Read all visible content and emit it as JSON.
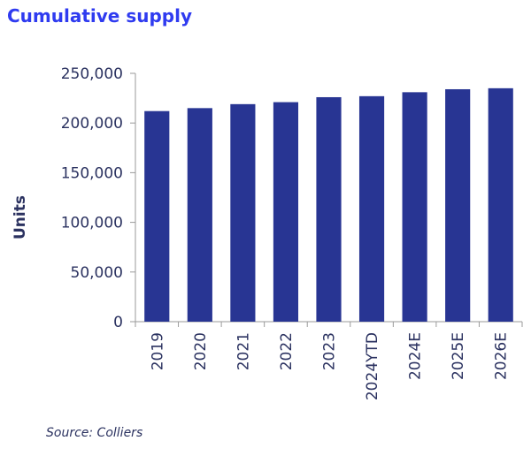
{
  "title": "Cumulative supply",
  "source": "Source: Colliers",
  "chart_data": {
    "type": "bar",
    "categories": [
      "2019",
      "2020",
      "2021",
      "2022",
      "2023",
      "2024YTD",
      "2024E",
      "2025E",
      "2026E"
    ],
    "values": [
      212000,
      215000,
      219000,
      221000,
      226000,
      227000,
      231000,
      234000,
      235000
    ],
    "ylabel": "Units",
    "ylim": [
      0,
      250000
    ],
    "yticks": [
      "0",
      "50,000",
      "100,000",
      "150,000",
      "200,000",
      "250,000"
    ],
    "grid": false,
    "bar_color": "#283593"
  }
}
